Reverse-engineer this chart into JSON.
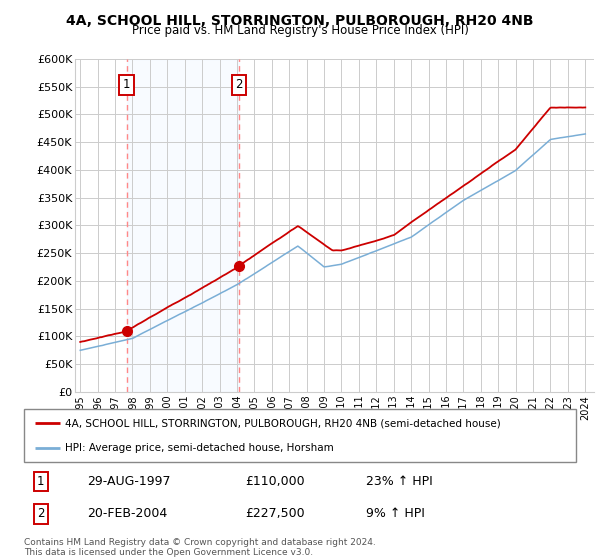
{
  "title": "4A, SCHOOL HILL, STORRINGTON, PULBOROUGH, RH20 4NB",
  "subtitle": "Price paid vs. HM Land Registry's House Price Index (HPI)",
  "ylabel_ticks": [
    "£0",
    "£50K",
    "£100K",
    "£150K",
    "£200K",
    "£250K",
    "£300K",
    "£350K",
    "£400K",
    "£450K",
    "£500K",
    "£550K",
    "£600K"
  ],
  "ylim": [
    0,
    600000
  ],
  "xlim_start": 1994.7,
  "xlim_end": 2024.5,
  "sale1_date": 1997.66,
  "sale1_price": 110000,
  "sale1_label": "1",
  "sale2_date": 2004.13,
  "sale2_price": 227500,
  "sale2_label": "2",
  "legend_line1": "4A, SCHOOL HILL, STORRINGTON, PULBOROUGH, RH20 4NB (semi-detached house)",
  "legend_line2": "HPI: Average price, semi-detached house, Horsham",
  "table_rows": [
    {
      "num": "1",
      "date": "29-AUG-1997",
      "price": "£110,000",
      "hpi": "23% ↑ HPI"
    },
    {
      "num": "2",
      "date": "20-FEB-2004",
      "price": "£227,500",
      "hpi": "9% ↑ HPI"
    }
  ],
  "footnote": "Contains HM Land Registry data © Crown copyright and database right 2024.\nThis data is licensed under the Open Government Licence v3.0.",
  "red_line_color": "#cc0000",
  "blue_line_color": "#7aaed6",
  "sale_marker_color": "#cc0000",
  "vline_color": "#ff8888",
  "box_color": "#cc0000",
  "bg_shade_color": "#ddeeff",
  "grid_color": "#cccccc",
  "background_color": "#ffffff"
}
